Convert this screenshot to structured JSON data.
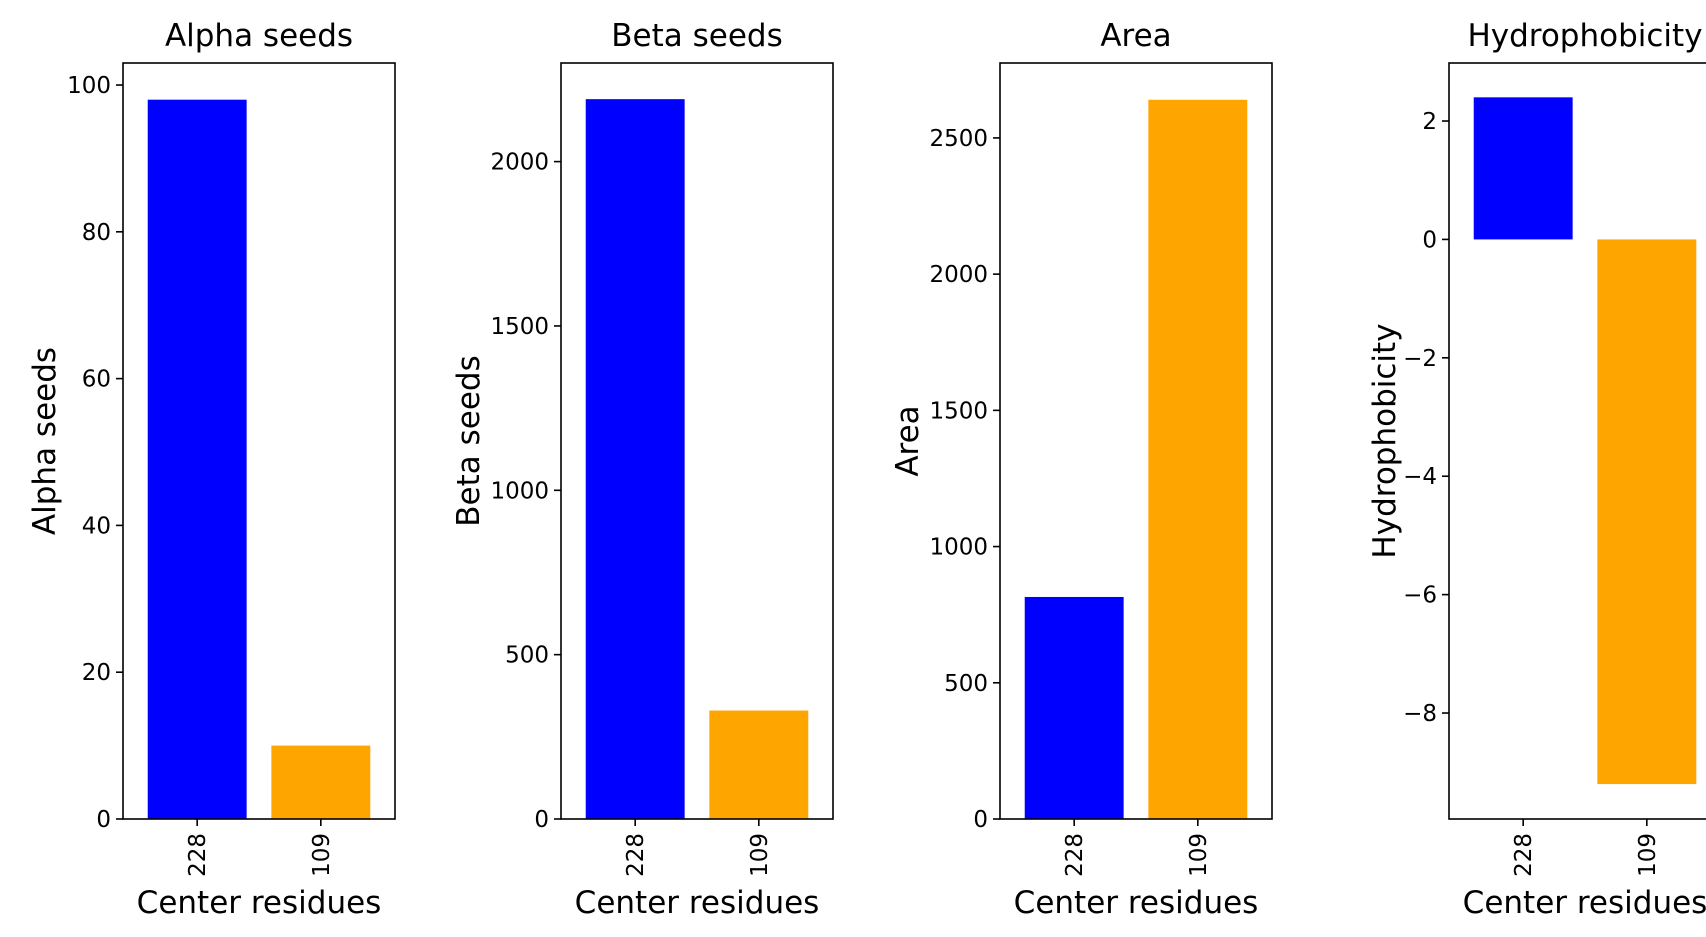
{
  "chart_data": [
    {
      "type": "bar",
      "title": "Alpha seeds",
      "xlabel": "Center residues",
      "ylabel": "Alpha seeds",
      "categories": [
        "228",
        "109"
      ],
      "values": [
        98,
        10
      ],
      "colors": [
        "#0000ff",
        "#ffa500"
      ],
      "ylim": [
        0,
        103
      ],
      "yticks": [
        0,
        20,
        40,
        60,
        80,
        100
      ],
      "ytick_labels": [
        "0",
        "20",
        "40",
        "60",
        "80",
        "100"
      ],
      "grid": false
    },
    {
      "type": "bar",
      "title": "Beta seeds",
      "xlabel": "Center residues",
      "ylabel": "Beta seeds",
      "categories": [
        "228",
        "109"
      ],
      "values": [
        2190,
        330
      ],
      "colors": [
        "#0000ff",
        "#ffa500"
      ],
      "ylim": [
        0,
        2300
      ],
      "yticks": [
        0,
        500,
        1000,
        1500,
        2000
      ],
      "ytick_labels": [
        "0",
        "500",
        "1000",
        "1500",
        "2000"
      ],
      "grid": false
    },
    {
      "type": "bar",
      "title": "Area",
      "xlabel": "Center residues",
      "ylabel": "Area",
      "categories": [
        "228",
        "109"
      ],
      "values": [
        815,
        2640
      ],
      "colors": [
        "#0000ff",
        "#ffa500"
      ],
      "ylim": [
        0,
        2775
      ],
      "yticks": [
        0,
        500,
        1000,
        1500,
        2000,
        2500
      ],
      "ytick_labels": [
        "0",
        "500",
        "1000",
        "1500",
        "2000",
        "2500"
      ],
      "grid": false
    },
    {
      "type": "bar",
      "title": "Hydrophobicity",
      "xlabel": "Center residues",
      "ylabel": "Hydrophobicity",
      "categories": [
        "228",
        "109"
      ],
      "values": [
        2.4,
        -9.2
      ],
      "colors": [
        "#0000ff",
        "#ffa500"
      ],
      "ylim": [
        -9.79,
        2.98
      ],
      "yticks": [
        -8,
        -6,
        -4,
        -2,
        0,
        2
      ],
      "ytick_labels": [
        "−8",
        "−6",
        "−4",
        "−2",
        "0",
        "2"
      ],
      "grid": false
    }
  ]
}
